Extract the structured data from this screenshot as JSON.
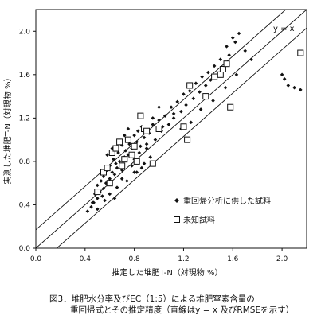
{
  "chart_data": {
    "type": "scatter",
    "xlabel": "推定した堆肥T-N（対現物 %）",
    "ylabel": "実測した堆肥T-N（対現物 %）",
    "xlim": [
      0,
      2.2
    ],
    "ylim": [
      0,
      2.2
    ],
    "xticks": [
      "0.0",
      "0.4",
      "0.8",
      "1.2",
      "1.6",
      "2.0"
    ],
    "yticks": [
      "0.0",
      "0.4",
      "0.8",
      "1.2",
      "1.6",
      "2.0"
    ],
    "grid": false,
    "legend_position": "right-middle",
    "annotation": "y = x",
    "reference_lines": [
      {
        "name": "y = x",
        "intercept": 0
      },
      {
        "name": "+RMSE",
        "intercept": 0.17
      },
      {
        "name": "-RMSE",
        "intercept": -0.17
      }
    ],
    "series": [
      {
        "name": "重回帰分析に供した試料",
        "marker": "diamond",
        "x": [
          0.42,
          0.45,
          0.47,
          0.48,
          0.5,
          0.5,
          0.52,
          0.53,
          0.55,
          0.55,
          0.57,
          0.58,
          0.6,
          0.6,
          0.62,
          0.63,
          0.64,
          0.65,
          0.66,
          0.67,
          0.68,
          0.7,
          0.7,
          0.72,
          0.73,
          0.74,
          0.75,
          0.76,
          0.78,
          0.8,
          0.8,
          0.82,
          0.83,
          0.85,
          0.86,
          0.88,
          0.9,
          0.92,
          0.95,
          0.97,
          1.0,
          1.02,
          1.05,
          1.08,
          1.1,
          1.12,
          1.15,
          1.18,
          1.2,
          1.22,
          1.25,
          1.28,
          1.3,
          1.33,
          1.35,
          1.38,
          1.4,
          1.42,
          1.45,
          1.48,
          1.5,
          1.52,
          1.55,
          1.57,
          1.6,
          1.62,
          1.65,
          1.7,
          1.75,
          0.58,
          0.62,
          0.68,
          0.72,
          0.75,
          0.78,
          0.84,
          0.9,
          0.95,
          1.0,
          0.7,
          0.66,
          0.54,
          0.6,
          0.74,
          0.82,
          0.88,
          0.93,
          1.03,
          1.12,
          1.18,
          1.26,
          1.34,
          1.44,
          1.54,
          1.58,
          1.63,
          2.0,
          2.02,
          2.05,
          2.1,
          2.15,
          0.46,
          0.5,
          0.56,
          0.64,
          0.8,
          0.86
        ],
        "y": [
          0.34,
          0.38,
          0.42,
          0.5,
          0.46,
          0.58,
          0.52,
          0.62,
          0.55,
          0.66,
          0.6,
          0.72,
          0.64,
          0.76,
          0.7,
          0.82,
          0.68,
          0.78,
          0.74,
          0.88,
          0.8,
          0.72,
          0.95,
          0.84,
          0.9,
          1.0,
          0.86,
          0.96,
          0.92,
          0.82,
          1.04,
          0.98,
          1.08,
          0.94,
          1.12,
          1.02,
          0.96,
          1.06,
          1.14,
          1.0,
          1.18,
          1.08,
          1.22,
          1.14,
          1.3,
          1.2,
          1.35,
          1.26,
          1.42,
          1.32,
          1.45,
          1.38,
          1.52,
          1.44,
          1.58,
          1.5,
          1.62,
          1.55,
          1.68,
          1.6,
          1.74,
          1.65,
          1.86,
          1.78,
          1.94,
          1.9,
          1.98,
          1.82,
          1.74,
          0.86,
          0.92,
          0.98,
          1.04,
          1.1,
          0.76,
          0.88,
          0.92,
          1.2,
          1.3,
          0.64,
          0.56,
          0.48,
          0.5,
          0.62,
          0.7,
          0.78,
          0.84,
          1.12,
          1.24,
          1.1,
          1.16,
          1.28,
          1.36,
          1.48,
          1.3,
          1.6,
          1.6,
          1.56,
          1.5,
          1.48,
          1.46,
          0.42,
          0.36,
          0.44,
          0.46,
          0.7,
          0.74
        ]
      },
      {
        "name": "未知試料",
        "marker": "square",
        "x": [
          0.5,
          0.55,
          0.58,
          0.6,
          0.62,
          0.65,
          0.68,
          0.7,
          0.72,
          0.75,
          0.78,
          0.8,
          0.82,
          0.85,
          0.88,
          0.9,
          0.95,
          1.0,
          1.2,
          1.23,
          1.25,
          1.38,
          1.45,
          1.5,
          1.52,
          1.55,
          1.58,
          2.15
        ],
        "y": [
          0.52,
          0.7,
          0.74,
          0.6,
          0.88,
          0.92,
          0.98,
          0.76,
          0.82,
          1.0,
          0.86,
          0.94,
          0.8,
          1.22,
          1.1,
          1.08,
          0.78,
          1.1,
          1.12,
          1.0,
          1.5,
          1.4,
          1.58,
          1.6,
          1.65,
          1.7,
          1.3,
          1.8
        ]
      }
    ]
  },
  "caption": {
    "line1": "図3．堆肥水分率及びEC（1:5）による堆肥窒素含量の",
    "line2": "重回帰式とその推定精度（直線はy = x 及びRMSEを示す）"
  }
}
